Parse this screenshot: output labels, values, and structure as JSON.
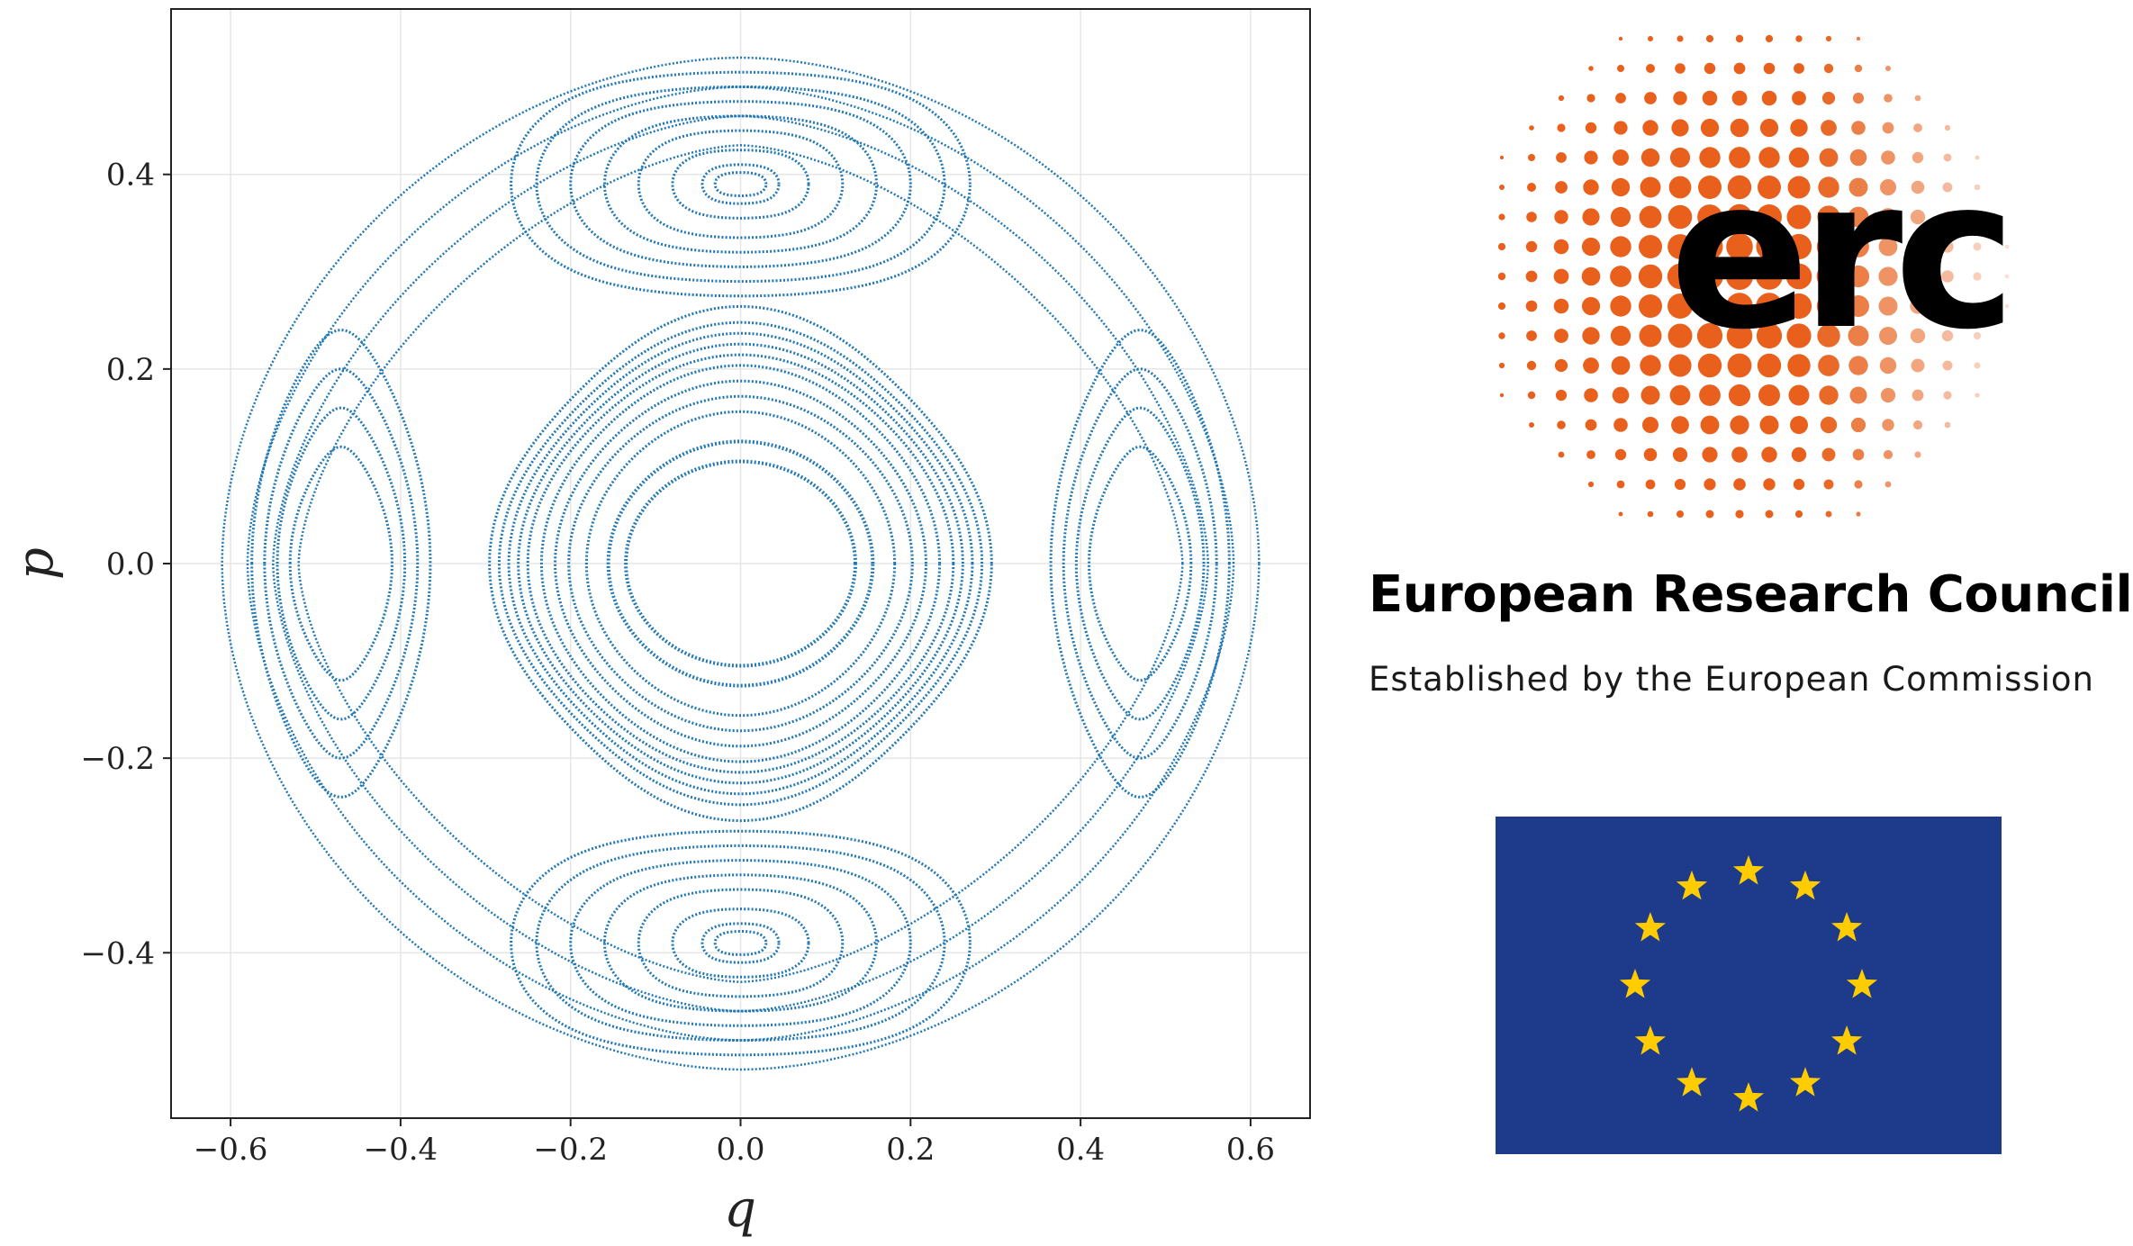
{
  "chart_data": {
    "type": "scatter",
    "title": "",
    "xlabel": "q",
    "ylabel": "p",
    "xlim": [
      -0.67,
      0.67
    ],
    "ylim": [
      -0.57,
      0.57
    ],
    "x_ticks": [
      -0.6,
      -0.4,
      -0.2,
      0.0,
      0.2,
      0.4,
      0.6
    ],
    "y_ticks": [
      -0.4,
      -0.2,
      0.0,
      0.2,
      0.4
    ],
    "x_tick_labels": [
      "−0.6",
      "−0.4",
      "−0.2",
      "0.0",
      "0.2",
      "0.4",
      "0.6"
    ],
    "y_tick_labels": [
      "−0.4",
      "−0.2",
      "0.0",
      "0.2",
      "0.4"
    ],
    "grid": true,
    "point_color": "#1f77b4",
    "series": [
      {
        "values": "Poincaré section orbits: central elliptic island (q≈±0.13, p≈±0.105), nested invariant tori out to q≈±0.28, p≈±0.26; islands centred at (0, ±0.39) and (±0.47, 0); outermost orbit reaching q≈±0.61, p≈±0.52"
      }
    ]
  },
  "logo": {
    "wordmark": "erc",
    "name": "European Research Council",
    "tagline": "Established by the European Commission",
    "dot_color": "#e8601c",
    "flag_blue": "#1e3a8a",
    "star_color": "#ffcc00",
    "star_count": 12
  }
}
